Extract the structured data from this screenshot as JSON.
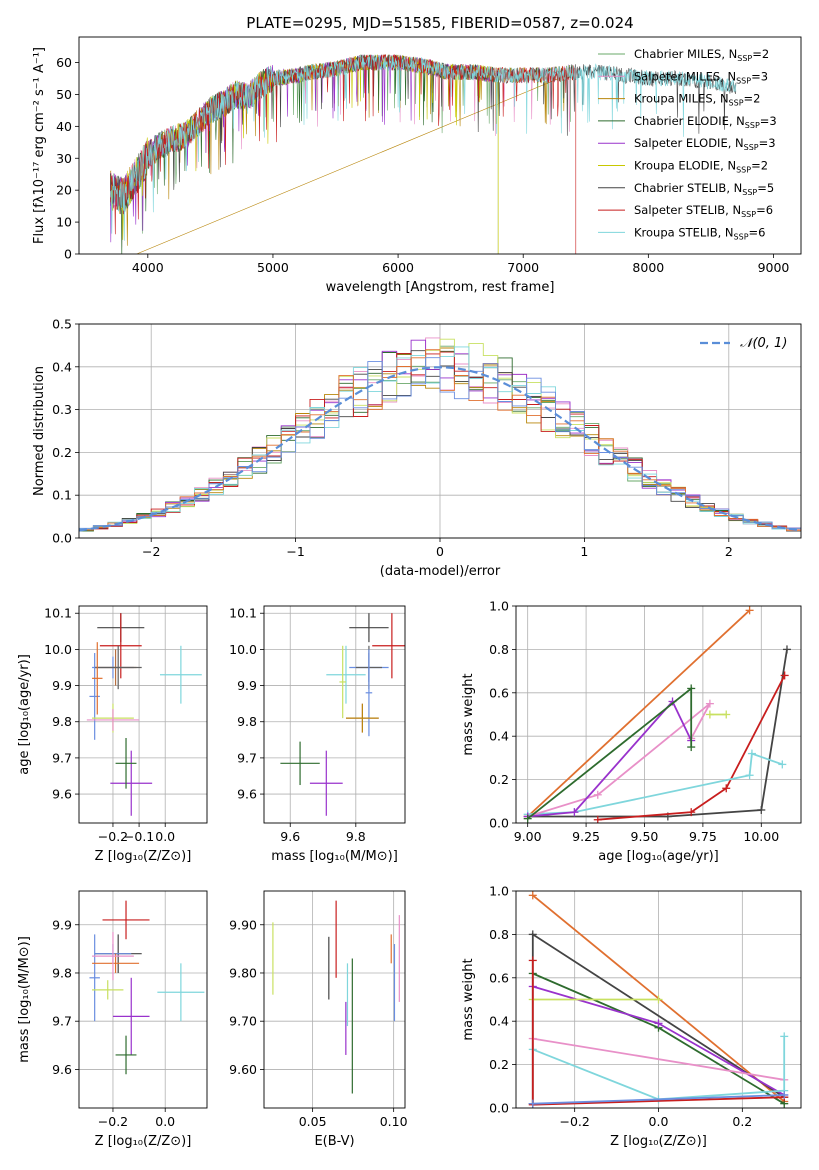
{
  "chart_data": [
    {
      "id": "spectrum",
      "type": "line",
      "title": "PLATE=0295, MJD=51585, FIBERID=0587, z=0.024",
      "xlabel": "wavelength [Angstrom, rest frame]",
      "ylabel": "Flux [fλ10⁻¹⁷ erg cm⁻² s⁻¹ A⁻¹]",
      "xlim": [
        3450,
        9220
      ],
      "ylim": [
        0,
        68
      ],
      "xticks": [
        4000,
        5000,
        6000,
        7000,
        8000,
        9000
      ],
      "yticks": [
        0,
        10,
        20,
        30,
        40,
        50,
        60
      ],
      "grid": false,
      "legend": "right",
      "continuum": [
        [
          3700,
          20
        ],
        [
          3800,
          18
        ],
        [
          3900,
          24
        ],
        [
          3950,
          27
        ],
        [
          4000,
          31
        ],
        [
          4100,
          34
        ],
        [
          4200,
          36
        ],
        [
          4300,
          37
        ],
        [
          4400,
          41
        ],
        [
          4500,
          45
        ],
        [
          4600,
          47
        ],
        [
          4700,
          50
        ],
        [
          4800,
          49
        ],
        [
          4900,
          53
        ],
        [
          5000,
          55
        ],
        [
          5200,
          56
        ],
        [
          5300,
          57
        ],
        [
          5500,
          58
        ],
        [
          5700,
          60
        ],
        [
          5900,
          60
        ],
        [
          6000,
          60
        ],
        [
          6200,
          59
        ],
        [
          6400,
          57
        ],
        [
          6600,
          57
        ],
        [
          6800,
          56
        ],
        [
          7000,
          56
        ],
        [
          7200,
          56
        ],
        [
          7400,
          57
        ],
        [
          7600,
          57
        ],
        [
          7800,
          56
        ],
        [
          8000,
          55
        ],
        [
          8200,
          55
        ],
        [
          8500,
          54
        ],
        [
          8700,
          52
        ]
      ],
      "series": [
        {
          "name": "Chabrier MILES, N_SSP=2",
          "color": "#6aa86a",
          "end": 7400
        },
        {
          "name": "Salpeter MILES, N_SSP=3",
          "color": "#e890c8",
          "end": 7400
        },
        {
          "name": "Kroupa MILES, N_SSP=2",
          "color": "#b8860b",
          "end": 7400,
          "drop": 3910
        },
        {
          "name": "Chabrier ELODIE, N_SSP=3",
          "color": "#2e6b2e",
          "end": 6800,
          "drop": 6800
        },
        {
          "name": "Salpeter ELODIE, N_SSP=3",
          "color": "#9932cc",
          "end": 6800
        },
        {
          "name": "Kroupa ELODIE, N_SSP=2",
          "color": "#c8c800",
          "end": 6800,
          "drop": 6800
        },
        {
          "name": "Chabrier STELIB, N_SSP=5",
          "color": "#444444",
          "end": 8700
        },
        {
          "name": "Salpeter STELIB, N_SSP=6",
          "color": "#c81e1e",
          "end": 7420,
          "drop": 7420
        },
        {
          "name": "Kroupa STELIB, N_SSP=6",
          "color": "#7fd6dc",
          "end": 8700
        }
      ]
    },
    {
      "id": "residuals",
      "type": "line",
      "xlabel": "(data-model)/error",
      "ylabel": "Normed distribution",
      "xlim": [
        -2.5,
        2.5
      ],
      "ylim": [
        0,
        0.5
      ],
      "xticks": [
        -2,
        -1,
        0,
        1,
        2
      ],
      "yticks": [
        0.0,
        0.1,
        0.2,
        0.3,
        0.4,
        0.5
      ],
      "grid": true,
      "legend": "top-right",
      "model_label": "𝒩(0, 1)",
      "model_color": "#5a8ed8",
      "hist_colors": [
        "#6aa86a",
        "#e890c8",
        "#b8860b",
        "#2e6b2e",
        "#9932cc",
        "#c8e060",
        "#444444",
        "#c81e1e",
        "#7fd6dc",
        "#e07030",
        "#6a8ee0"
      ]
    },
    {
      "id": "age-vs-Z",
      "type": "scatter",
      "xlabel": "Z [log₁₀(Z/Z⊙)]",
      "ylabel": "age  [log₁₀(age/yr)]",
      "xlim": [
        -0.33,
        0.16
      ],
      "ylim": [
        9.52,
        10.12
      ],
      "xticks": [
        -0.2,
        -0.1,
        0.0
      ],
      "yticks": [
        9.6,
        9.7,
        9.8,
        9.9,
        10.0,
        10.1
      ],
      "grid": true,
      "points": [
        {
          "x": -0.17,
          "y": 10.06,
          "ex": 0.09,
          "ey": 0.04,
          "color": "#444444"
        },
        {
          "x": -0.17,
          "y": 10.01,
          "ex": 0.08,
          "ey": 0.09,
          "color": "#c81e1e"
        },
        {
          "x": 0.06,
          "y": 9.93,
          "ex": 0.08,
          "ey": 0.08,
          "color": "#7fd6dc"
        },
        {
          "x": -0.2,
          "y": 9.95,
          "ex": 0.08,
          "ey": 0.03,
          "color": "#6a8ee0"
        },
        {
          "x": -0.19,
          "y": 9.95,
          "ex": 0.08,
          "ey": 0.05,
          "color": "#b87040"
        },
        {
          "x": -0.18,
          "y": 9.95,
          "ex": 0.09,
          "ey": 0.06,
          "color": "#606060"
        },
        {
          "x": -0.27,
          "y": 9.87,
          "ex": 0.02,
          "ey": 0.12,
          "color": "#6a8ee0"
        },
        {
          "x": -0.26,
          "y": 9.92,
          "ex": 0.02,
          "ey": 0.1,
          "color": "#e07030"
        },
        {
          "x": -0.2,
          "y": 9.81,
          "ex": 0.08,
          "ey": 0.04,
          "color": "#c8e060"
        },
        {
          "x": -0.2,
          "y": 9.805,
          "ex": 0.1,
          "ey": 0.03,
          "color": "#e890c8"
        },
        {
          "x": -0.13,
          "y": 9.63,
          "ex": 0.08,
          "ey": 0.09,
          "color": "#9932cc"
        },
        {
          "x": -0.15,
          "y": 9.685,
          "ex": 0.04,
          "ey": 0.07,
          "color": "#2e6b2e"
        }
      ]
    },
    {
      "id": "age-vs-mass",
      "type": "scatter",
      "xlabel": "mass [log₁₀(M/M⊙)]",
      "ylabel": "",
      "xlim": [
        9.52,
        9.95
      ],
      "ylim": [
        9.52,
        10.12
      ],
      "xticks": [
        9.6,
        9.8
      ],
      "yticks": [
        9.6,
        9.7,
        9.8,
        9.9,
        10.0,
        10.1
      ],
      "grid": true,
      "points": [
        {
          "x": 9.84,
          "y": 10.06,
          "ex": 0.06,
          "ey": 0.04,
          "color": "#444444"
        },
        {
          "x": 9.91,
          "y": 10.01,
          "ex": 0.06,
          "ey": 0.09,
          "color": "#c81e1e"
        },
        {
          "x": 9.77,
          "y": 9.93,
          "ex": 0.06,
          "ey": 0.08,
          "color": "#7fd6dc"
        },
        {
          "x": 9.84,
          "y": 9.95,
          "ex": 0.06,
          "ey": 0.04,
          "color": "#6a8ee0"
        },
        {
          "x": 9.84,
          "y": 9.95,
          "ex": 0.04,
          "ey": 0.06,
          "color": "#606060"
        },
        {
          "x": 9.76,
          "y": 9.91,
          "ex": 0.01,
          "ey": 0.1,
          "color": "#c8e060"
        },
        {
          "x": 9.84,
          "y": 9.88,
          "ex": 0.01,
          "ey": 0.12,
          "color": "#6a8ee0"
        },
        {
          "x": 9.82,
          "y": 9.81,
          "ex": 0.05,
          "ey": 0.04,
          "color": "#e890c8"
        },
        {
          "x": 9.82,
          "y": 9.81,
          "ex": 0.05,
          "ey": 0.04,
          "color": "#b8860b"
        },
        {
          "x": 9.71,
          "y": 9.63,
          "ex": 0.05,
          "ey": 0.09,
          "color": "#9932cc"
        },
        {
          "x": 9.63,
          "y": 9.685,
          "ex": 0.06,
          "ey": 0.06,
          "color": "#2e6b2e"
        }
      ]
    },
    {
      "id": "weight-vs-age",
      "type": "line",
      "xlabel": "age  [log₁₀(age/yr)]",
      "ylabel": "mass weight",
      "xlim": [
        8.95,
        10.17
      ],
      "ylim": [
        0,
        1.0
      ],
      "xticks": [
        9.0,
        9.25,
        9.5,
        9.75,
        10.0
      ],
      "yticks": [
        0.0,
        0.2,
        0.4,
        0.6,
        0.8,
        1.0
      ],
      "grid": true,
      "series": [
        {
          "color": "#e07030",
          "x": [
            9.0,
            9.95
          ],
          "y": [
            0.03,
            0.98
          ]
        },
        {
          "color": "#444444",
          "x": [
            9.0,
            9.6,
            10.0,
            10.11
          ],
          "y": [
            0.03,
            0.03,
            0.06,
            0.8
          ]
        },
        {
          "color": "#c81e1e",
          "x": [
            9.3,
            9.7,
            9.85,
            10.1
          ],
          "y": [
            0.015,
            0.05,
            0.16,
            0.68
          ]
        },
        {
          "color": "#7fd6dc",
          "x": [
            9.0,
            9.2,
            9.95,
            9.96,
            10.09
          ],
          "y": [
            0.04,
            0.05,
            0.22,
            0.32,
            0.27
          ]
        },
        {
          "color": "#e890c8",
          "x": [
            9.0,
            9.3,
            9.78,
            9.7
          ],
          "y": [
            0.03,
            0.13,
            0.55,
            0.39
          ]
        },
        {
          "color": "#9932cc",
          "x": [
            9.0,
            9.2,
            9.62,
            9.7
          ],
          "y": [
            0.03,
            0.05,
            0.56,
            0.38
          ]
        },
        {
          "color": "#2e6b2e",
          "x": [
            9.0,
            9.7,
            9.7
          ],
          "y": [
            0.02,
            0.62,
            0.35
          ]
        },
        {
          "color": "#c8e060",
          "x": [
            9.78,
            9.85
          ],
          "y": [
            0.5,
            0.5
          ]
        }
      ]
    },
    {
      "id": "mass-vs-Z",
      "type": "scatter",
      "xlabel": "Z [log₁₀(Z/Z⊙)]",
      "ylabel": "mass [log₁₀(M/M⊙)]",
      "xlim": [
        -0.33,
        0.16
      ],
      "ylim": [
        9.52,
        9.97
      ],
      "xticks": [
        -0.2,
        0.0
      ],
      "yticks": [
        9.6,
        9.7,
        9.8,
        9.9
      ],
      "grid": true,
      "points": [
        {
          "x": -0.15,
          "y": 9.91,
          "ex": 0.09,
          "ey": 0.04,
          "color": "#c81e1e"
        },
        {
          "x": -0.18,
          "y": 9.84,
          "ex": 0.09,
          "ey": 0.04,
          "color": "#444444"
        },
        {
          "x": -0.2,
          "y": 9.84,
          "ex": 0.07,
          "ey": 0.02,
          "color": "#6a8ee0"
        },
        {
          "x": -0.27,
          "y": 9.79,
          "ex": 0.02,
          "ey": 0.09,
          "color": "#6a8ee0"
        },
        {
          "x": -0.19,
          "y": 9.82,
          "ex": 0.09,
          "ey": 0.02,
          "color": "#e07030"
        },
        {
          "x": -0.2,
          "y": 9.835,
          "ex": 0.08,
          "ey": 0.05,
          "color": "#e890c8"
        },
        {
          "x": -0.22,
          "y": 9.765,
          "ex": 0.06,
          "ey": 0.02,
          "color": "#c8e060"
        },
        {
          "x": 0.06,
          "y": 9.76,
          "ex": 0.09,
          "ey": 0.06,
          "color": "#7fd6dc"
        },
        {
          "x": -0.13,
          "y": 9.71,
          "ex": 0.07,
          "ey": 0.08,
          "color": "#9932cc"
        },
        {
          "x": -0.15,
          "y": 9.63,
          "ex": 0.04,
          "ey": 0.04,
          "color": "#2e6b2e"
        }
      ]
    },
    {
      "id": "mass-vs-EBV",
      "type": "scatter",
      "xlabel": "E(B-V)",
      "ylabel": "",
      "xlim": [
        0.02,
        0.107
      ],
      "ylim": [
        9.52,
        9.97
      ],
      "xticks": [
        0.05,
        0.1
      ],
      "yticks": [
        9.6,
        9.7,
        9.8,
        9.9
      ],
      "grid": true,
      "points": [
        {
          "x": 0.0255,
          "y": 9.83,
          "ex": 0,
          "ey": 0.075,
          "color": "#c8e060"
        },
        {
          "x": 0.06,
          "y": 9.81,
          "ex": 0,
          "ey": 0.065,
          "color": "#444444"
        },
        {
          "x": 0.0645,
          "y": 9.87,
          "ex": 0,
          "ey": 0.08,
          "color": "#c81e1e"
        },
        {
          "x": 0.0715,
          "y": 9.755,
          "ex": 0,
          "ey": 0.065,
          "color": "#7fd6dc"
        },
        {
          "x": 0.0705,
          "y": 9.685,
          "ex": 0,
          "ey": 0.055,
          "color": "#9932cc"
        },
        {
          "x": 0.0745,
          "y": 9.69,
          "ex": 0,
          "ey": 0.14,
          "color": "#2e6b2e"
        },
        {
          "x": 0.0985,
          "y": 9.85,
          "ex": 0,
          "ey": 0.03,
          "color": "#e07030"
        },
        {
          "x": 0.1005,
          "y": 9.78,
          "ex": 0,
          "ey": 0.08,
          "color": "#6a8ee0"
        },
        {
          "x": 0.1035,
          "y": 9.83,
          "ex": 0,
          "ey": 0.09,
          "color": "#e890c8"
        }
      ]
    },
    {
      "id": "weight-vs-Z",
      "type": "line",
      "xlabel": "Z [log₁₀(Z/Z⊙)]",
      "ylabel": "mass weight",
      "xlim": [
        -0.34,
        0.34
      ],
      "ylim": [
        0,
        1.0
      ],
      "xticks": [
        -0.2,
        0.0,
        0.2
      ],
      "yticks": [
        0.0,
        0.2,
        0.4,
        0.6,
        0.8,
        1.0
      ],
      "grid": true,
      "series": [
        {
          "color": "#e07030",
          "x": [
            -0.3,
            0.3
          ],
          "y": [
            0.98,
            0.03
          ]
        },
        {
          "color": "#444444",
          "x": [
            -0.3,
            -0.3,
            0.3
          ],
          "y": [
            0.02,
            0.8,
            0.05
          ]
        },
        {
          "color": "#2e6b2e",
          "x": [
            -0.3,
            0.0,
            0.3
          ],
          "y": [
            0.62,
            0.37,
            0.02
          ]
        },
        {
          "color": "#9932cc",
          "x": [
            -0.3,
            0.0,
            0.3
          ],
          "y": [
            0.56,
            0.39,
            0.06
          ]
        },
        {
          "color": "#c8e060",
          "x": [
            -0.3,
            0.0
          ],
          "y": [
            0.5,
            0.5
          ]
        },
        {
          "color": "#e890c8",
          "x": [
            -0.3,
            0.3
          ],
          "y": [
            0.32,
            0.13
          ]
        },
        {
          "color": "#7fd6dc",
          "x": [
            -0.3,
            0.0,
            0.3,
            0.3
          ],
          "y": [
            0.27,
            0.04,
            0.08,
            0.33
          ]
        },
        {
          "color": "#c81e1e",
          "x": [
            -0.3,
            -0.3,
            0.3
          ],
          "y": [
            0.68,
            0.015,
            0.05
          ]
        },
        {
          "color": "#6a8ee0",
          "x": [
            -0.3,
            0.3
          ],
          "y": [
            0.02,
            0.06
          ]
        }
      ]
    }
  ]
}
